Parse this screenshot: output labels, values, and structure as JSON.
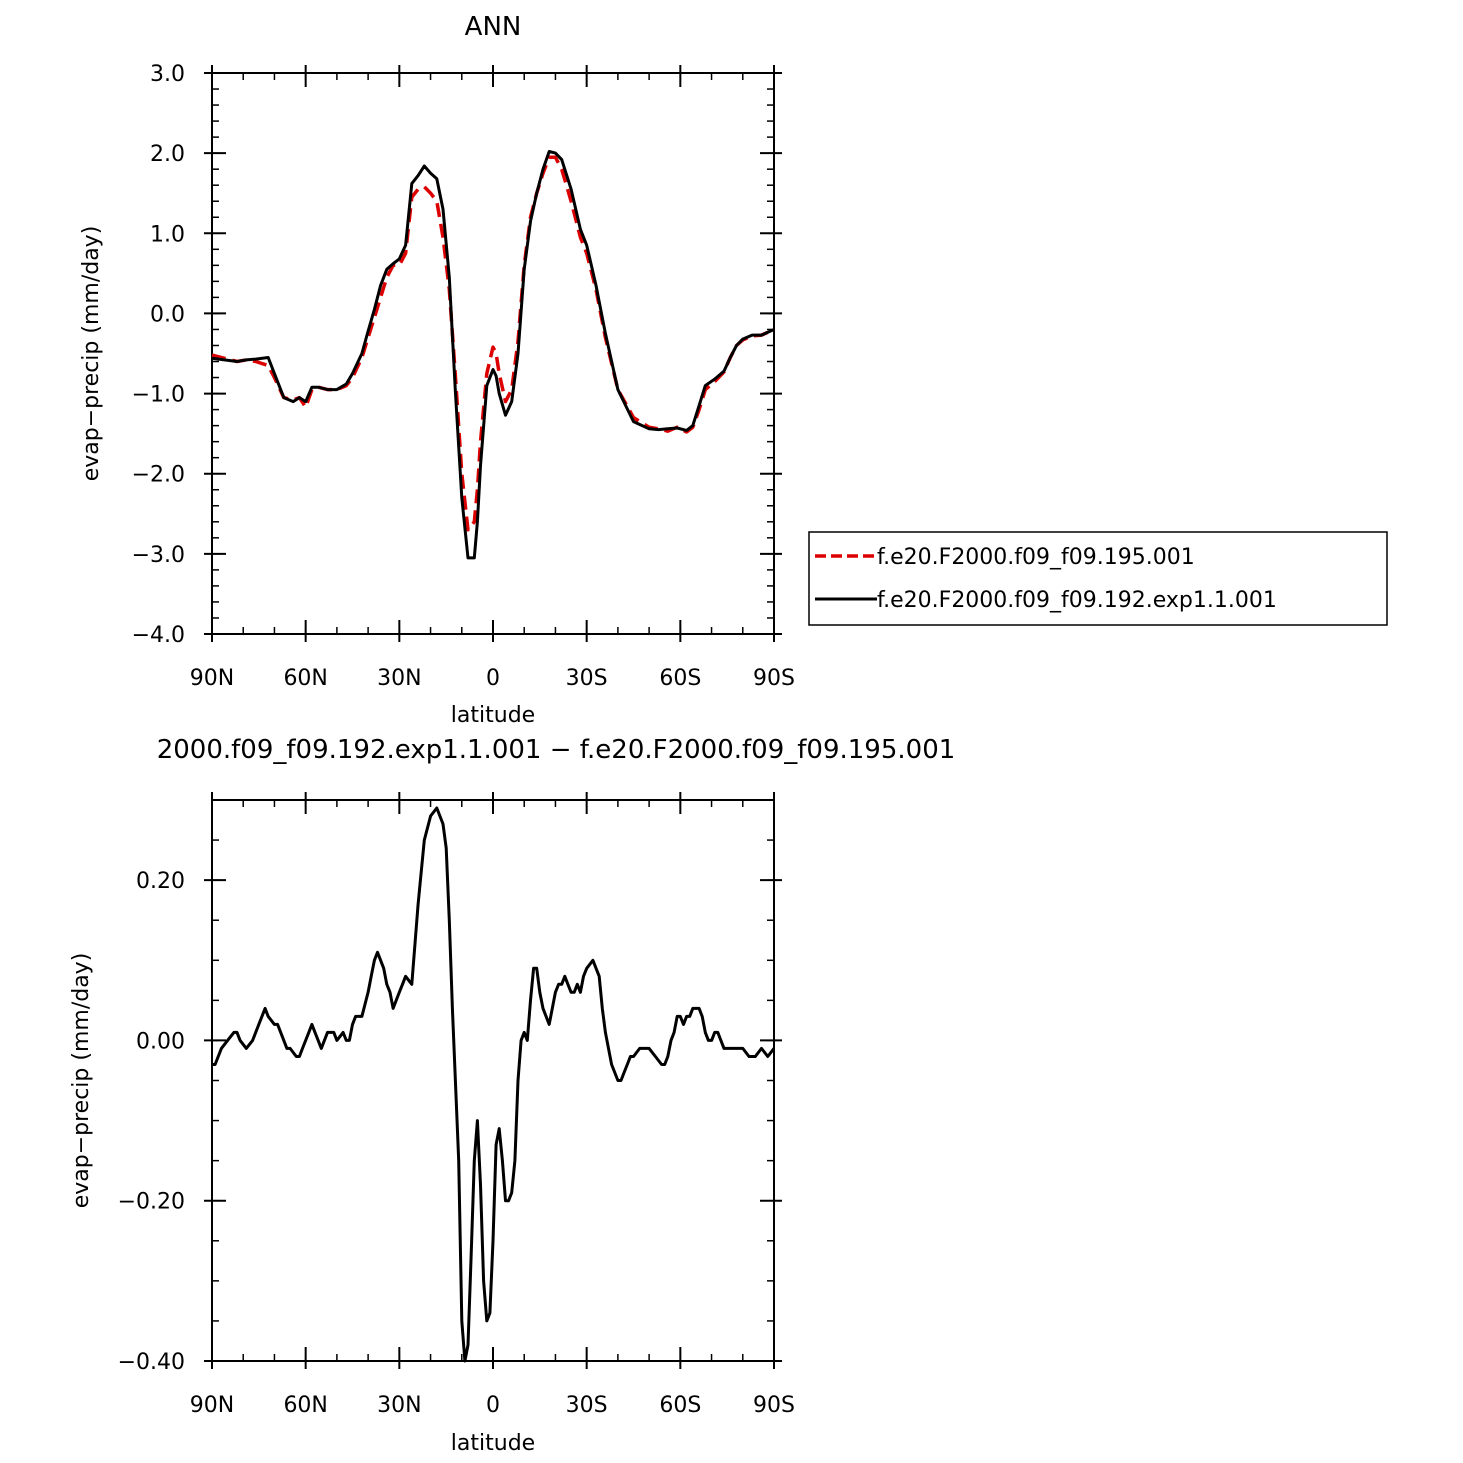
{
  "chart_data": [
    {
      "type": "line",
      "title": "ANN",
      "xlabel": "latitude",
      "ylabel": "evap−precip (mm/day)",
      "xlim": [
        90,
        -90
      ],
      "ylim": [
        -4.0,
        3.0
      ],
      "x_ticks": [
        {
          "value": 90,
          "label": "90N"
        },
        {
          "value": 60,
          "label": "60N"
        },
        {
          "value": 30,
          "label": "30N"
        },
        {
          "value": 0,
          "label": "0"
        },
        {
          "value": -30,
          "label": "30S"
        },
        {
          "value": -60,
          "label": "60S"
        },
        {
          "value": -90,
          "label": "90S"
        }
      ],
      "y_ticks": [
        {
          "value": 3.0,
          "label": "3.0"
        },
        {
          "value": 2.0,
          "label": "2.0"
        },
        {
          "value": 1.0,
          "label": "1.0"
        },
        {
          "value": 0.0,
          "label": "0.0"
        },
        {
          "value": -1.0,
          "label": "−1.0"
        },
        {
          "value": -2.0,
          "label": "−2.0"
        },
        {
          "value": -3.0,
          "label": "−3.0"
        },
        {
          "value": -4.0,
          "label": "−4.0"
        }
      ],
      "grid": false,
      "legend": {
        "position": "right"
      },
      "series": [
        {
          "name": "f.e20.F2000.f09_f09.195.001",
          "color": "#dd0000",
          "dash": "dashed",
          "x": [
            90,
            86,
            82,
            79,
            76,
            72,
            70,
            67,
            64,
            62,
            60,
            58,
            56,
            53,
            50,
            47,
            45,
            42,
            40,
            38,
            36,
            34,
            32,
            30,
            28,
            26,
            24,
            22,
            20,
            18,
            16,
            14,
            12,
            10,
            8,
            6,
            5,
            4,
            2,
            0,
            -1,
            -2,
            -4,
            -6,
            -8,
            -10,
            -12,
            -14,
            -16,
            -18,
            -20,
            -22,
            -25,
            -28,
            -30,
            -33,
            -36,
            -40,
            -45,
            -50,
            -53,
            -56,
            -59,
            -62,
            -64,
            -66,
            -68,
            -71,
            -74,
            -76,
            -78,
            -80,
            -83,
            -86,
            -90
          ],
          "y": [
            -0.52,
            -0.56,
            -0.6,
            -0.58,
            -0.6,
            -0.65,
            -0.8,
            -1.05,
            -1.08,
            -1.05,
            -1.17,
            -0.95,
            -0.92,
            -0.95,
            -0.95,
            -0.9,
            -0.8,
            -0.55,
            -0.3,
            -0.05,
            0.2,
            0.45,
            0.6,
            0.6,
            0.75,
            1.45,
            1.55,
            1.58,
            1.5,
            1.4,
            0.95,
            0.3,
            -0.8,
            -2.0,
            -2.7,
            -2.6,
            -2.2,
            -1.6,
            -0.75,
            -0.42,
            -0.5,
            -0.75,
            -1.1,
            -0.95,
            -0.35,
            0.6,
            1.2,
            1.5,
            1.75,
            1.95,
            1.95,
            1.8,
            1.4,
            0.95,
            0.75,
            0.3,
            -0.3,
            -0.95,
            -1.3,
            -1.42,
            -1.44,
            -1.47,
            -1.42,
            -1.48,
            -1.42,
            -1.2,
            -0.95,
            -0.85,
            -0.73,
            -0.55,
            -0.4,
            -0.33,
            -0.28,
            -0.27,
            -0.2
          ]
        },
        {
          "name": "f.e20.F2000.f09_f09.192.exp1.1.001",
          "color": "#000000",
          "dash": "solid",
          "x": [
            90,
            86,
            82,
            79,
            76,
            72,
            70,
            67,
            64,
            62,
            60,
            58,
            56,
            53,
            50,
            47,
            45,
            42,
            40,
            38,
            36,
            34,
            32,
            30,
            28,
            26,
            24,
            22,
            20,
            18,
            16,
            14,
            12,
            10,
            8,
            6,
            5,
            4,
            2,
            0,
            -1,
            -2,
            -4,
            -6,
            -8,
            -10,
            -12,
            -14,
            -16,
            -18,
            -20,
            -22,
            -25,
            -28,
            -30,
            -33,
            -36,
            -40,
            -45,
            -50,
            -53,
            -56,
            -59,
            -62,
            -64,
            -66,
            -68,
            -71,
            -74,
            -76,
            -78,
            -80,
            -83,
            -86,
            -90
          ],
          "y": [
            -0.56,
            -0.58,
            -0.6,
            -0.58,
            -0.57,
            -0.55,
            -0.75,
            -1.05,
            -1.1,
            -1.05,
            -1.1,
            -0.92,
            -0.92,
            -0.95,
            -0.95,
            -0.88,
            -0.75,
            -0.5,
            -0.22,
            0.05,
            0.35,
            0.55,
            0.62,
            0.68,
            0.85,
            1.62,
            1.72,
            1.84,
            1.75,
            1.68,
            1.3,
            0.45,
            -1.0,
            -2.3,
            -3.05,
            -3.05,
            -2.6,
            -1.9,
            -0.9,
            -0.7,
            -0.78,
            -1.0,
            -1.27,
            -1.1,
            -0.5,
            0.55,
            1.15,
            1.5,
            1.8,
            2.02,
            2.0,
            1.92,
            1.55,
            1.05,
            0.85,
            0.35,
            -0.25,
            -0.95,
            -1.35,
            -1.44,
            -1.45,
            -1.44,
            -1.43,
            -1.46,
            -1.4,
            -1.15,
            -0.9,
            -0.82,
            -0.72,
            -0.55,
            -0.4,
            -0.32,
            -0.27,
            -0.27,
            -0.2
          ]
        }
      ]
    },
    {
      "type": "line",
      "title": "2000.f09_f09.192.exp1.1.001 − f.e20.F2000.f09_f09.195.001",
      "xlabel": "latitude",
      "ylabel": "evap−precip (mm/day)",
      "xlim": [
        90,
        -90
      ],
      "ylim": [
        -0.4,
        0.3
      ],
      "x_ticks": [
        {
          "value": 90,
          "label": "90N"
        },
        {
          "value": 60,
          "label": "60N"
        },
        {
          "value": 30,
          "label": "30N"
        },
        {
          "value": 0,
          "label": "0"
        },
        {
          "value": -30,
          "label": "30S"
        },
        {
          "value": -60,
          "label": "60S"
        },
        {
          "value": -90,
          "label": "90S"
        }
      ],
      "y_ticks": [
        {
          "value": 0.2,
          "label": "0.20"
        },
        {
          "value": 0.0,
          "label": "0.00"
        },
        {
          "value": -0.2,
          "label": "−0.20"
        },
        {
          "value": -0.4,
          "label": "−0.40"
        }
      ],
      "grid": false,
      "series": [
        {
          "color": "#000000",
          "dash": "solid",
          "x": [
            90,
            89,
            87,
            85,
            83,
            82,
            81,
            79,
            77,
            76,
            75,
            73,
            72,
            70,
            69,
            68,
            66,
            65,
            63,
            62,
            61,
            59,
            58,
            57,
            55,
            53,
            51,
            50,
            48,
            47,
            46,
            45,
            44,
            42,
            40,
            39,
            38,
            37,
            35,
            34,
            33,
            32,
            30,
            29,
            28,
            26,
            24,
            22,
            20,
            18,
            17,
            16,
            15,
            14,
            13,
            11,
            10,
            9,
            8,
            7,
            6,
            5,
            4,
            3,
            2,
            1,
            0,
            -1,
            -2,
            -3,
            -4,
            -5,
            -6,
            -7,
            -8,
            -9,
            -10,
            -11,
            -12,
            -13,
            -14,
            -15,
            -16,
            -17,
            -18,
            -19,
            -20,
            -21,
            -22,
            -23,
            -24,
            -25,
            -26,
            -27,
            -28,
            -29,
            -30,
            -32,
            -34,
            -35,
            -36,
            -38,
            -40,
            -41,
            -42,
            -43,
            -44,
            -45,
            -47,
            -49,
            -50,
            -52,
            -54,
            -55,
            -56,
            -57,
            -58,
            -59,
            -60,
            -61,
            -62,
            -63,
            -64,
            -65,
            -66,
            -67,
            -68,
            -69,
            -70,
            -71,
            -72,
            -73,
            -74,
            -75,
            -76,
            -78,
            -80,
            -82,
            -84,
            -86,
            -88,
            -90
          ],
          "y": [
            -0.03,
            -0.03,
            -0.01,
            0.0,
            0.01,
            0.01,
            0.0,
            -0.01,
            0.0,
            0.01,
            0.02,
            0.04,
            0.03,
            0.02,
            0.02,
            0.01,
            -0.01,
            -0.01,
            -0.02,
            -0.02,
            -0.01,
            0.01,
            0.02,
            0.01,
            -0.01,
            0.01,
            0.01,
            0.0,
            0.01,
            0.0,
            0.0,
            0.02,
            0.03,
            0.03,
            0.06,
            0.08,
            0.1,
            0.11,
            0.09,
            0.07,
            0.06,
            0.04,
            0.06,
            0.07,
            0.08,
            0.07,
            0.17,
            0.25,
            0.28,
            0.29,
            0.28,
            0.27,
            0.24,
            0.15,
            0.04,
            -0.15,
            -0.35,
            -0.4,
            -0.38,
            -0.27,
            -0.15,
            -0.1,
            -0.18,
            -0.3,
            -0.35,
            -0.34,
            -0.25,
            -0.13,
            -0.11,
            -0.15,
            -0.2,
            -0.2,
            -0.19,
            -0.15,
            -0.05,
            0.0,
            0.01,
            0.0,
            0.05,
            0.09,
            0.09,
            0.06,
            0.04,
            0.03,
            0.02,
            0.04,
            0.06,
            0.07,
            0.07,
            0.08,
            0.07,
            0.06,
            0.06,
            0.07,
            0.06,
            0.08,
            0.09,
            0.1,
            0.08,
            0.04,
            0.01,
            -0.03,
            -0.05,
            -0.05,
            -0.04,
            -0.03,
            -0.02,
            -0.02,
            -0.01,
            -0.01,
            -0.01,
            -0.02,
            -0.03,
            -0.03,
            -0.02,
            0.0,
            0.01,
            0.03,
            0.03,
            0.02,
            0.03,
            0.03,
            0.04,
            0.04,
            0.04,
            0.03,
            0.01,
            0.0,
            0.0,
            0.01,
            0.01,
            0.0,
            -0.01,
            -0.01,
            -0.01,
            -0.01,
            -0.01,
            -0.02,
            -0.02,
            -0.01,
            -0.02,
            -0.01
          ]
        }
      ]
    }
  ]
}
